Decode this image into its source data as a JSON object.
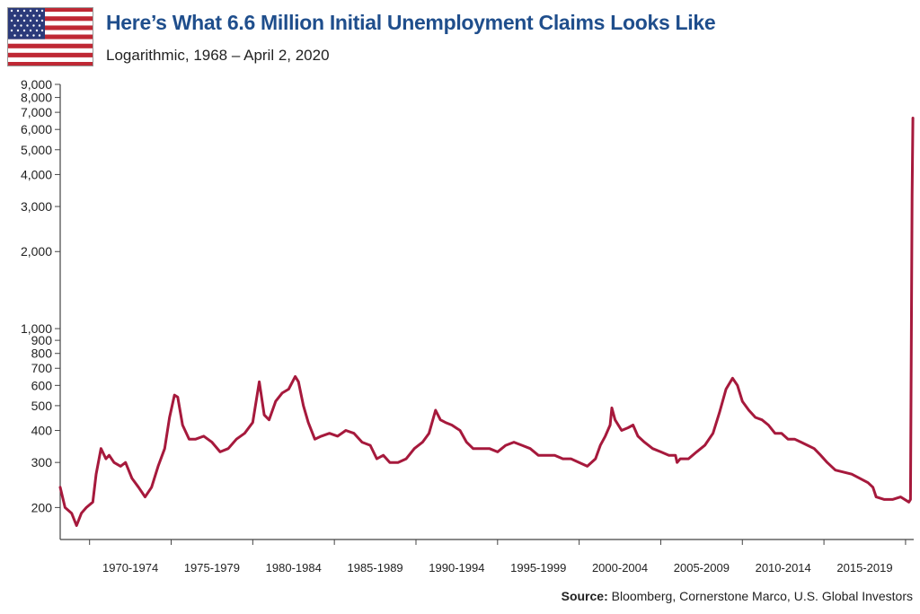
{
  "header": {
    "title": "Here’s What 6.6 Million Initial Unemployment Claims Looks Like",
    "subtitle": "Logarithmic, 1968 – April 2, 2020",
    "flag_icon": "us-flag-icon"
  },
  "footer": {
    "source_label": "Source:",
    "source_text": " Bloomberg, Cornerstone Marco, U.S. Global Investors"
  },
  "colors": {
    "title": "#1f4e8c",
    "series": "#a6193c",
    "axis": "#444444"
  },
  "chart_data": {
    "type": "line",
    "title": "Here’s What 6.6 Million Initial Unemployment Claims Looks Like",
    "subtitle": "Logarithmic, 1968 – April 2, 2020",
    "xlabel": "",
    "ylabel": "",
    "y_scale": "log",
    "ylim": [
      150,
      9000
    ],
    "xlim": [
      1968,
      2020.3
    ],
    "y_ticks": [
      200,
      300,
      400,
      500,
      600,
      700,
      800,
      900,
      1000,
      2000,
      3000,
      4000,
      5000,
      6000,
      7000,
      8000,
      9000
    ],
    "y_tick_labels": [
      "200",
      "300",
      "400",
      "500",
      "600",
      "700",
      "800",
      "900",
      "1,000",
      "2,000",
      "3,000",
      "4,000",
      "5,000",
      "6,000",
      "7,000",
      "8,000",
      "9,000"
    ],
    "x_ticks": [
      1969.8,
      1974.8,
      1979.8,
      1984.8,
      1989.8,
      1994.8,
      1999.8,
      2004.8,
      2009.8,
      2014.8,
      2019.8
    ],
    "x_categories": [
      "1970-1974",
      "1975-1979",
      "1980-1984",
      "1985-1989",
      "1990-1994",
      "1995-1999",
      "2000-2004",
      "2005-2009",
      "2010-2014",
      "2015-2019"
    ],
    "grid": false,
    "legend": "none",
    "series": [
      {
        "color": "#a6193c",
        "x": [
          1968.0,
          1968.3,
          1968.7,
          1969.0,
          1969.3,
          1969.6,
          1970.0,
          1970.2,
          1970.5,
          1970.8,
          1971.0,
          1971.3,
          1971.7,
          1972.0,
          1972.4,
          1972.8,
          1973.2,
          1973.6,
          1974.0,
          1974.4,
          1974.7,
          1975.0,
          1975.2,
          1975.5,
          1975.9,
          1976.3,
          1976.8,
          1977.3,
          1977.8,
          1978.3,
          1978.8,
          1979.3,
          1979.8,
          1980.2,
          1980.5,
          1980.8,
          1981.2,
          1981.6,
          1982.0,
          1982.4,
          1982.6,
          1982.9,
          1983.2,
          1983.6,
          1984.0,
          1984.5,
          1985.0,
          1985.5,
          1986.0,
          1986.5,
          1987.0,
          1987.4,
          1987.8,
          1988.2,
          1988.7,
          1989.2,
          1989.7,
          1990.2,
          1990.6,
          1991.0,
          1991.3,
          1991.6,
          1992.0,
          1992.5,
          1992.9,
          1993.3,
          1993.8,
          1994.3,
          1994.8,
          1995.3,
          1995.8,
          1996.3,
          1996.8,
          1997.3,
          1997.8,
          1998.3,
          1998.8,
          1999.3,
          1999.8,
          2000.3,
          2000.8,
          2001.1,
          2001.4,
          2001.7,
          2001.8,
          2002.0,
          2002.4,
          2002.8,
          2003.1,
          2003.4,
          2003.8,
          2004.3,
          2004.8,
          2005.3,
          2005.7,
          2005.8,
          2006.0,
          2006.5,
          2007.0,
          2007.5,
          2008.0,
          2008.4,
          2008.8,
          2009.2,
          2009.5,
          2009.8,
          2010.2,
          2010.6,
          2011.0,
          2011.4,
          2011.8,
          2012.2,
          2012.6,
          2013.0,
          2013.4,
          2013.8,
          2014.2,
          2014.6,
          2015.0,
          2015.5,
          2016.0,
          2016.5,
          2017.0,
          2017.5,
          2017.8,
          2018.0,
          2018.5,
          2019.0,
          2019.5,
          2020.0,
          2020.1,
          2020.2,
          2020.25
        ],
        "y": [
          240,
          200,
          190,
          170,
          190,
          200,
          210,
          270,
          340,
          310,
          320,
          300,
          290,
          300,
          260,
          240,
          220,
          240,
          290,
          340,
          450,
          550,
          540,
          420,
          370,
          370,
          380,
          360,
          330,
          340,
          370,
          390,
          430,
          620,
          460,
          440,
          520,
          560,
          580,
          650,
          620,
          500,
          430,
          370,
          380,
          390,
          380,
          400,
          390,
          360,
          350,
          310,
          320,
          300,
          300,
          310,
          340,
          360,
          390,
          480,
          440,
          430,
          420,
          400,
          360,
          340,
          340,
          340,
          330,
          350,
          360,
          350,
          340,
          320,
          320,
          320,
          310,
          310,
          300,
          290,
          310,
          350,
          380,
          420,
          490,
          440,
          400,
          410,
          420,
          380,
          360,
          340,
          330,
          320,
          320,
          300,
          310,
          310,
          330,
          350,
          390,
          470,
          580,
          640,
          600,
          520,
          480,
          450,
          440,
          420,
          390,
          390,
          370,
          370,
          360,
          350,
          340,
          320,
          300,
          280,
          275,
          270,
          260,
          250,
          240,
          220,
          215,
          215,
          220,
          210,
          215,
          3300,
          6650
        ]
      }
    ]
  }
}
